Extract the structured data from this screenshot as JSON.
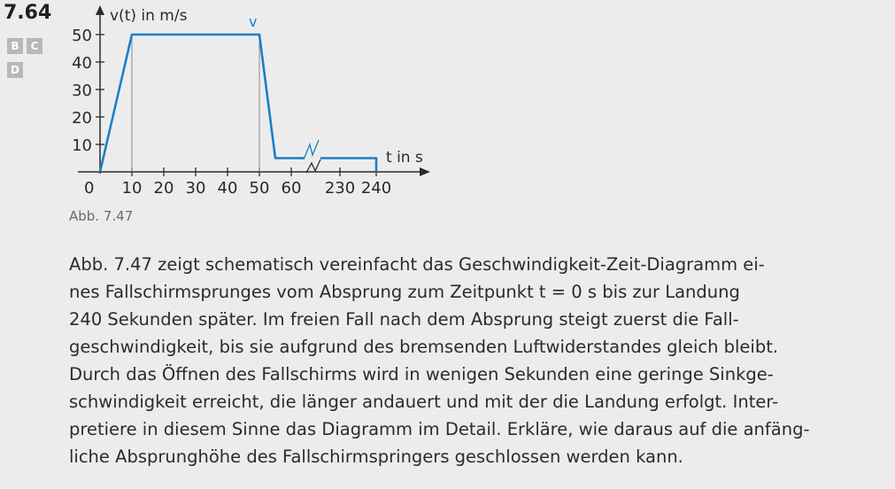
{
  "task": {
    "number": "7.64",
    "badges": [
      "B",
      "C",
      "D"
    ]
  },
  "chart_data": {
    "type": "line",
    "ylabel": "v(t) in m/s",
    "xlabel": "t in s",
    "series": [
      {
        "name": "v",
        "color": "#1a7fc9",
        "points": [
          [
            0,
            0
          ],
          [
            10,
            50
          ],
          [
            50,
            50
          ],
          [
            55,
            5
          ],
          [
            240,
            5
          ],
          [
            240,
            0
          ]
        ]
      }
    ],
    "y_ticks": [
      10,
      20,
      30,
      40,
      50
    ],
    "x_ticks": [
      "10",
      "20",
      "30",
      "40",
      "50",
      "60",
      "230",
      "240"
    ],
    "origin_label": "0",
    "axis_break": "between 60 and 230",
    "guide_lines_at_x": [
      10,
      50
    ]
  },
  "caption": "Abb. 7.47",
  "text_lines": [
    "Abb. 7.47 zeigt schematisch vereinfacht das Geschwindigkeit-Zeit-Diagramm ei-",
    "nes Fallschirmsprunges vom Absprung zum Zeitpunkt  t = 0 s  bis zur Landung",
    "240 Sekunden später. Im freien Fall nach dem Absprung steigt zuerst die Fall-",
    "geschwindigkeit, bis sie aufgrund des bremsenden Luftwiderstandes gleich bleibt.",
    "Durch das Öffnen des Fallschirms wird in wenigen Sekunden eine geringe Sinkge-",
    "schwindigkeit erreicht, die länger andauert und mit der die Landung erfolgt. Inter-",
    "pretiere in diesem Sinne das Diagramm im Detail. Erkläre, wie daraus auf die anfäng-",
    "liche Absprunghöhe des Fallschirmspringers geschlossen werden kann."
  ]
}
